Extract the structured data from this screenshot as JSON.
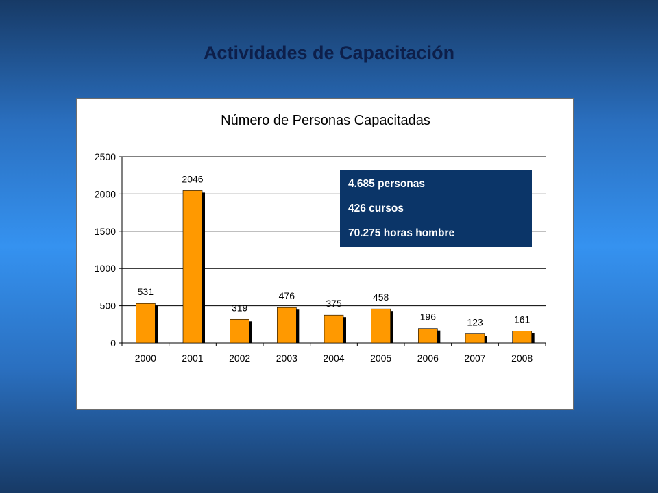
{
  "slide": {
    "title": "Actividades de Capacitación"
  },
  "summary": {
    "lines": [
      "4.685 personas",
      "426 cursos",
      "70.275 horas hombre"
    ],
    "background": "#0b3568"
  },
  "chart_data": {
    "type": "bar",
    "title": "Número de Personas Capacitadas",
    "xlabel": "",
    "ylabel": "",
    "categories": [
      "2000",
      "2001",
      "2002",
      "2003",
      "2004",
      "2005",
      "2006",
      "2007",
      "2008"
    ],
    "values": [
      531,
      2046,
      319,
      476,
      375,
      458,
      196,
      123,
      161
    ],
    "data_labels": [
      "531",
      "2046",
      "319",
      "476",
      "375",
      "458",
      "196",
      "123",
      "161"
    ],
    "ylim": [
      0,
      2500
    ],
    "yticks": [
      0,
      500,
      1000,
      1500,
      2000,
      2500
    ],
    "grid": true,
    "legend": "none",
    "bar_color": "#ff9900",
    "shadow_color": "#000000",
    "grid_color": "#000000"
  }
}
